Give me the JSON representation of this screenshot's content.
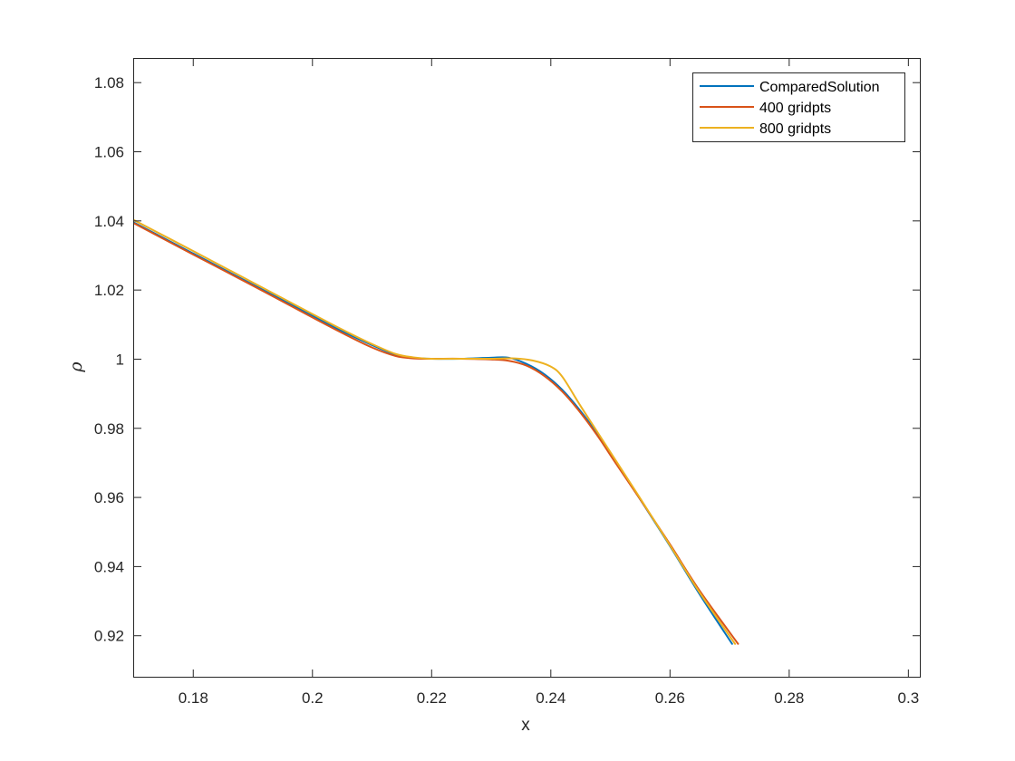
{
  "chart_data": {
    "type": "line",
    "title": "",
    "xlabel": "x",
    "ylabel": "ρ",
    "xlim": [
      0.17,
      0.302
    ],
    "ylim": [
      0.908,
      1.087
    ],
    "grid": false,
    "legend_position": "top-right",
    "x_ticks": [
      "0.18",
      "0.2",
      "0.22",
      "0.24",
      "0.26",
      "0.28",
      "0.3"
    ],
    "y_ticks": [
      "0.92",
      "0.94",
      "0.96",
      "0.98",
      "1",
      "1.02",
      "1.04",
      "1.06",
      "1.08"
    ],
    "series": [
      {
        "name": "ComparedSolution",
        "color": "#0072bd",
        "x": [
          0.17,
          0.18,
          0.19,
          0.2,
          0.205,
          0.21,
          0.214,
          0.217,
          0.22,
          0.225,
          0.23,
          0.233,
          0.236,
          0.239,
          0.242,
          0.245,
          0.248,
          0.251,
          0.255,
          0.26,
          0.265,
          0.2705
        ],
        "y": [
          1.0395,
          1.0305,
          1.0215,
          1.0125,
          1.008,
          1.004,
          1.0012,
          1.0003,
          1.0,
          1.0,
          1.0003,
          1.0003,
          0.9985,
          0.9955,
          0.991,
          0.985,
          0.978,
          0.97,
          0.9595,
          0.946,
          0.932,
          0.9175
        ]
      },
      {
        "name": "400 gridpts",
        "color": "#d95319",
        "x": [
          0.17,
          0.18,
          0.19,
          0.2,
          0.205,
          0.21,
          0.214,
          0.217,
          0.22,
          0.225,
          0.23,
          0.233,
          0.236,
          0.239,
          0.242,
          0.245,
          0.248,
          0.251,
          0.255,
          0.26,
          0.265,
          0.2715
        ],
        "y": [
          1.0393,
          1.0302,
          1.0212,
          1.012,
          1.0075,
          1.0033,
          1.0008,
          1.0001,
          1.0,
          1.0,
          0.9998,
          0.9994,
          0.998,
          0.995,
          0.9905,
          0.9845,
          0.9775,
          0.9697,
          0.9595,
          0.9465,
          0.933,
          0.9175
        ]
      },
      {
        "name": "800 gridpts",
        "color": "#edb120",
        "x": [
          0.17,
          0.18,
          0.19,
          0.2,
          0.205,
          0.21,
          0.214,
          0.217,
          0.22,
          0.225,
          0.23,
          0.234,
          0.237,
          0.24,
          0.242,
          0.245,
          0.248,
          0.251,
          0.255,
          0.26,
          0.265,
          0.271
        ],
        "y": [
          1.0402,
          1.0312,
          1.0221,
          1.013,
          1.0085,
          1.0043,
          1.0014,
          1.0004,
          1.0,
          1.0,
          1.0,
          1.0001,
          0.9995,
          0.9978,
          0.9948,
          0.9865,
          0.9785,
          0.9705,
          0.9598,
          0.9462,
          0.9325,
          0.9175
        ]
      }
    ]
  }
}
